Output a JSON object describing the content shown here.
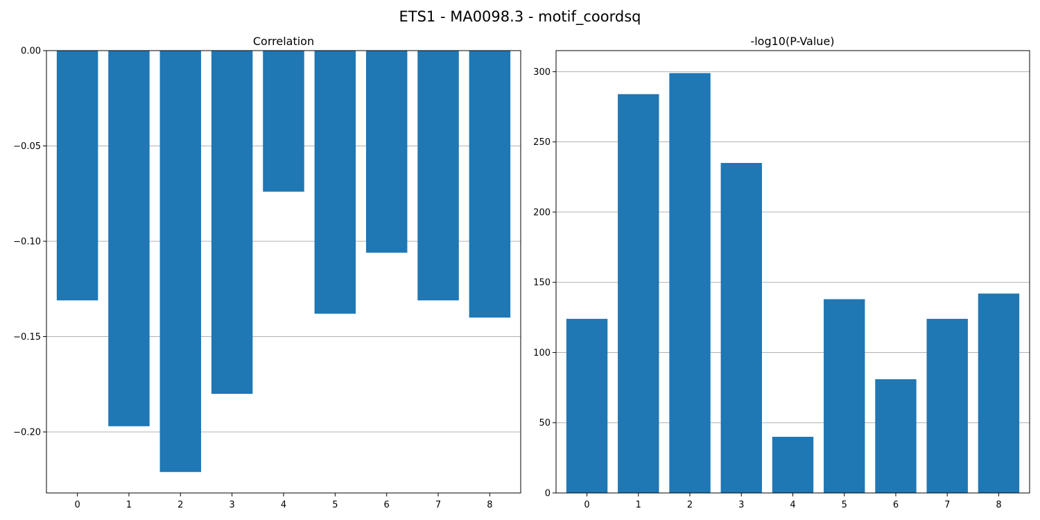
{
  "figure": {
    "title": "ETS1 - MA0098.3 - motif_coordsq"
  },
  "colors": {
    "bar": "#1f77b4",
    "grid": "#b0b0b0",
    "axis": "#000000",
    "background": "#ffffff"
  },
  "chart_data": [
    {
      "type": "bar",
      "title": "Correlation",
      "xlabel": "",
      "ylabel": "",
      "categories": [
        "0",
        "1",
        "2",
        "3",
        "4",
        "5",
        "6",
        "7",
        "8"
      ],
      "values": [
        -0.131,
        -0.197,
        -0.221,
        -0.18,
        -0.074,
        -0.138,
        -0.106,
        -0.131,
        -0.14
      ],
      "ylim": [
        -0.232,
        0.0
      ],
      "yticks": [
        0.0,
        -0.05,
        -0.1,
        -0.15,
        -0.2
      ],
      "ytick_labels": [
        "0.00",
        "−0.05",
        "−0.10",
        "−0.15",
        "−0.20"
      ],
      "grid": "y"
    },
    {
      "type": "bar",
      "title": "-log10(P-Value)",
      "xlabel": "",
      "ylabel": "",
      "categories": [
        "0",
        "1",
        "2",
        "3",
        "4",
        "5",
        "6",
        "7",
        "8"
      ],
      "values": [
        124,
        284,
        299,
        235,
        40,
        138,
        81,
        124,
        142
      ],
      "ylim": [
        0,
        315
      ],
      "yticks": [
        0,
        50,
        100,
        150,
        200,
        250,
        300
      ],
      "ytick_labels": [
        "0",
        "50",
        "100",
        "150",
        "200",
        "250",
        "300"
      ],
      "grid": "y"
    }
  ]
}
